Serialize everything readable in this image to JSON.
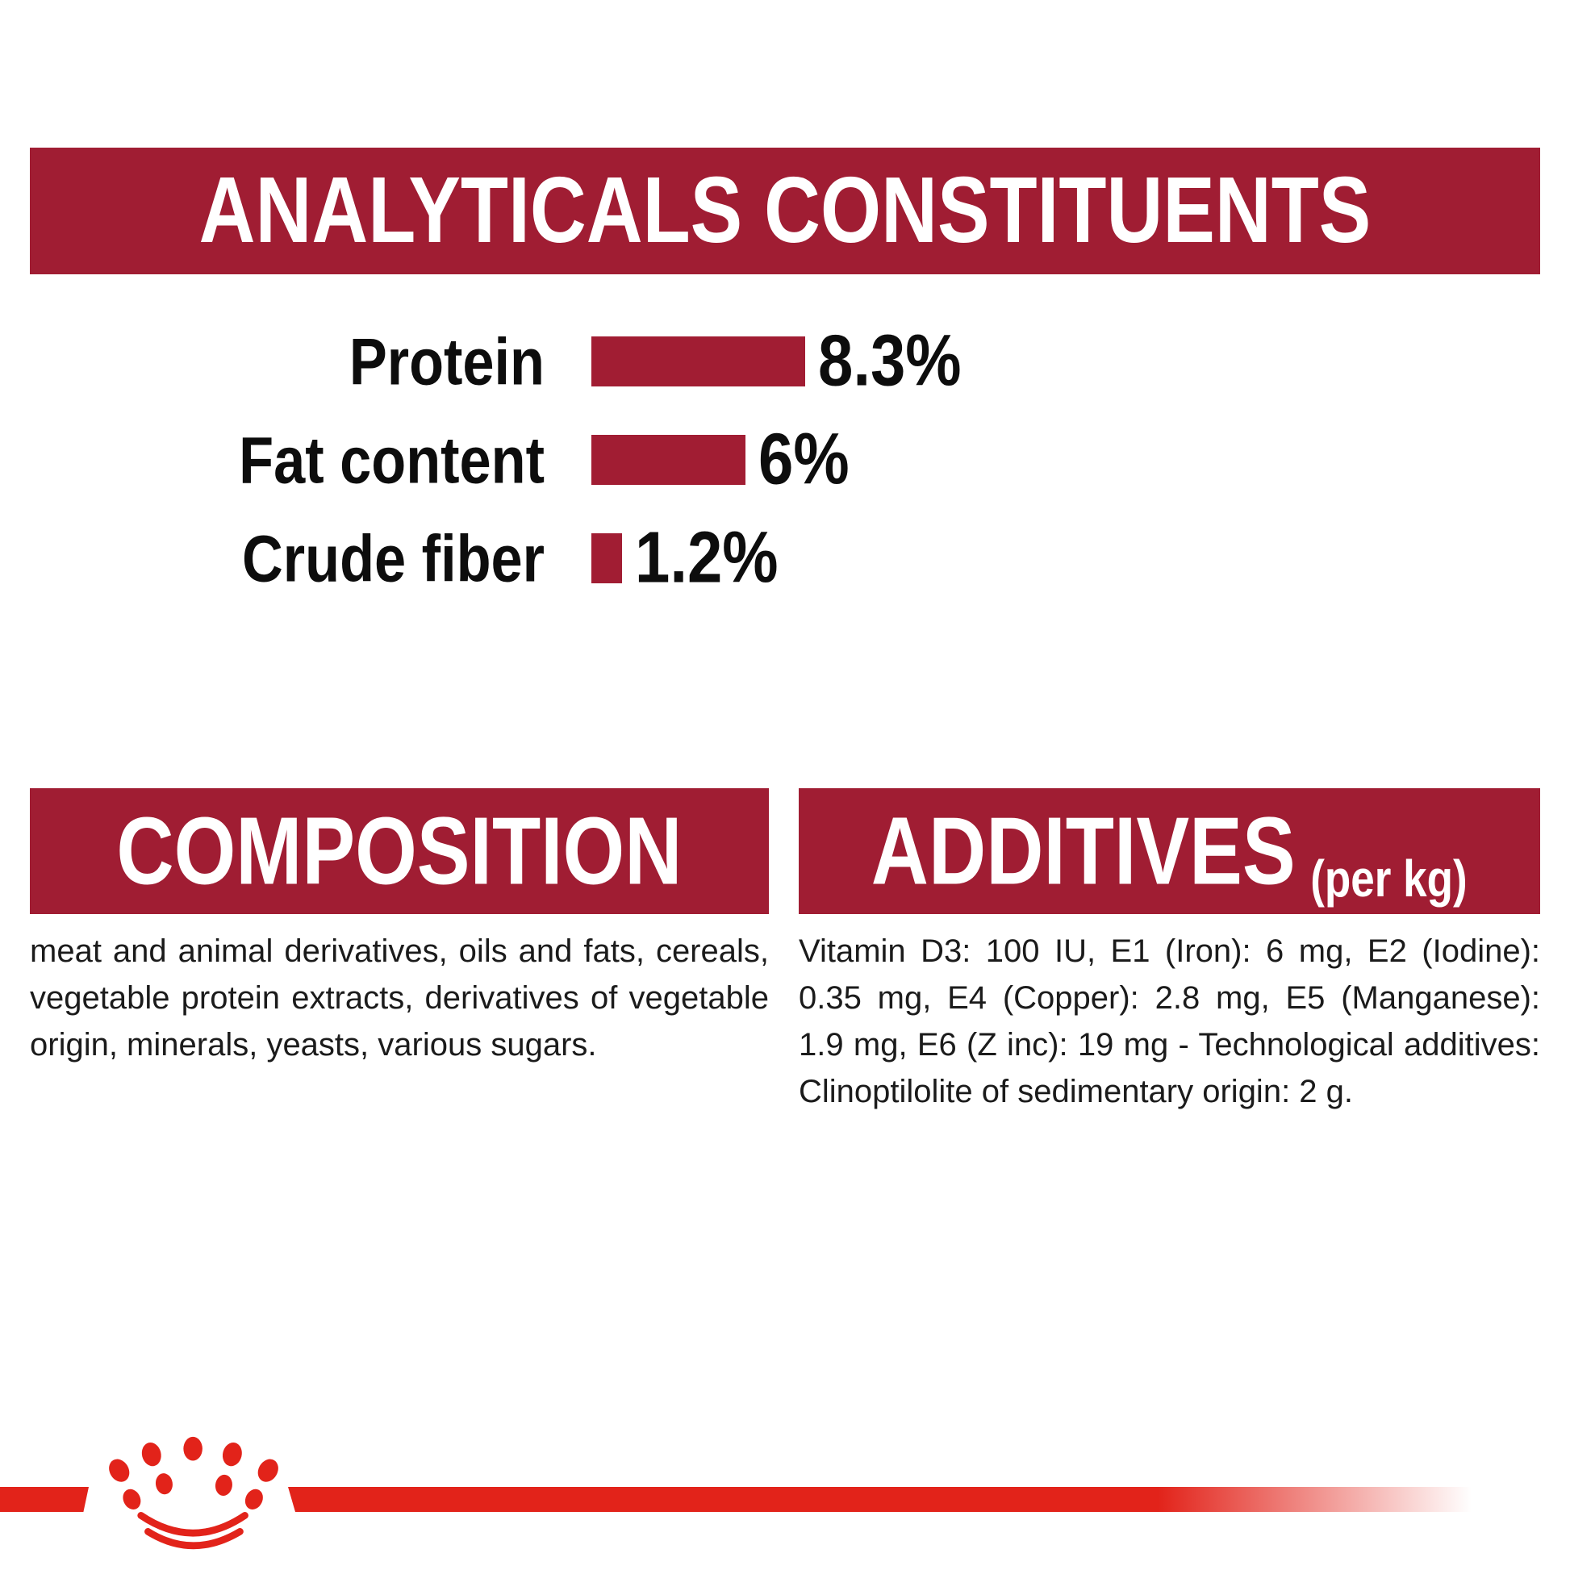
{
  "colors": {
    "background": "#FFFFFF",
    "panel_red": "#A01D33",
    "bar_red": "#A11D33",
    "logo_red": "#E2231A",
    "header_text": "#FFFFFF",
    "text_dark": "#1B1B1B"
  },
  "analyticals": {
    "title": "ANALYTICALS CONSTITUENTS"
  },
  "chart_data": {
    "type": "bar",
    "orientation": "horizontal",
    "title": "ANALYTICALS CONSTITUENTS",
    "categories": [
      "Protein",
      "Fat content",
      "Crude fiber"
    ],
    "values": [
      8.3,
      6,
      1.2
    ],
    "value_labels": [
      "8.3%",
      "6%",
      "1.2%"
    ],
    "unit": "%",
    "xlabel": "",
    "ylabel": "",
    "xlim": [
      0,
      8.3
    ],
    "grid": false,
    "legend": false,
    "bar_color": "#A11D33",
    "value_label_position": "right-of-bar"
  },
  "composition": {
    "title": "COMPOSITION",
    "body": "meat and animal derivatives, oils and fats, cereals, vegetable protein extracts, derivatives of vegetable origin, minerals, yeasts, various sugars."
  },
  "additives": {
    "title": "ADDITIVES",
    "unit_label": "(per kg)",
    "body": "Vitamin D3: 100 IU, E1 (Iron): 6 mg, E2 (Iodine): 0.35 mg, E4 (Copper): 2.8 mg, E5 (Manganese): 1.9 mg, E6 (Z inc): 19 mg - Technological additives: Clinoptilolite of sedimentary origin: 2 g."
  },
  "brand": {
    "logo": "royal-canin-crown"
  }
}
